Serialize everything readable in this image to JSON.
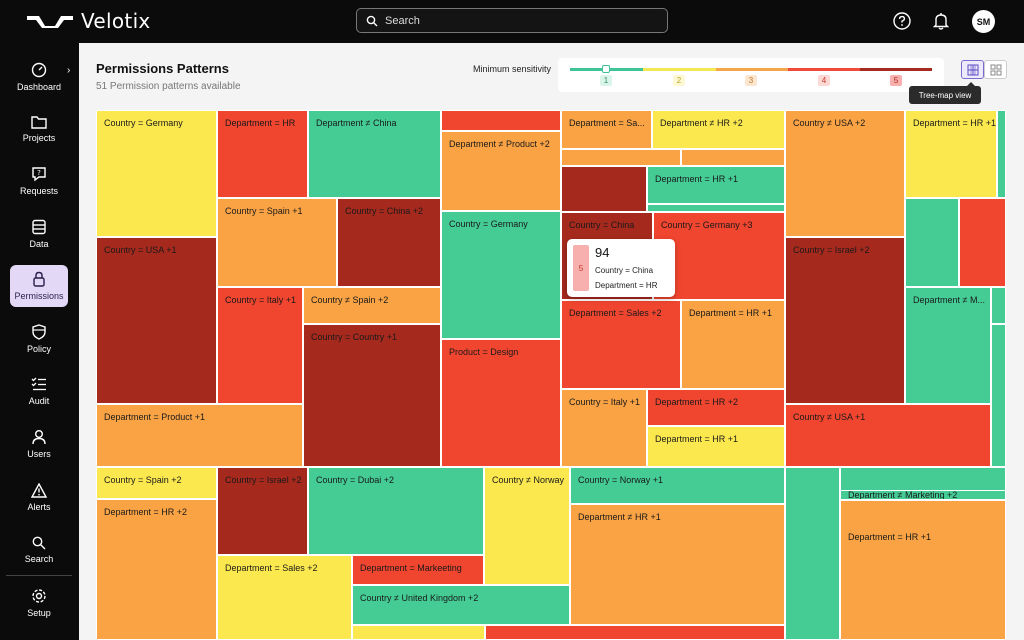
{
  "app": {
    "name": "Velotix"
  },
  "search": {
    "placeholder": "Search"
  },
  "user": {
    "initials": "SM"
  },
  "sidebar": {
    "items": [
      {
        "label": "Dashboard",
        "icon": "dashboard-icon"
      },
      {
        "label": "Projects",
        "icon": "folder-icon"
      },
      {
        "label": "Requests",
        "icon": "requests-icon"
      },
      {
        "label": "Data",
        "icon": "database-icon"
      },
      {
        "label": "Permissions",
        "icon": "lock-icon",
        "active": true
      },
      {
        "label": "Policy",
        "icon": "shield-icon"
      },
      {
        "label": "Audit",
        "icon": "checklist-icon"
      },
      {
        "label": "Users",
        "icon": "user-icon"
      },
      {
        "label": "Alerts",
        "icon": "warning-icon"
      },
      {
        "label": "Search",
        "icon": "search-icon"
      },
      {
        "label": "Setup",
        "icon": "gear-icon"
      }
    ]
  },
  "header": {
    "title": "Permissions Patterns",
    "subtitle": "51 Permission patterns available"
  },
  "sensitivity": {
    "label": "Minimum sensitivity",
    "levels": [
      "1",
      "2",
      "3",
      "4",
      "5"
    ],
    "selected": "1",
    "colors": [
      "#3ec495",
      "#f5e654",
      "#f5a54a",
      "#f04a3a",
      "#a52a1f"
    ]
  },
  "view_toggle": {
    "tooltip": "Tree-map view"
  },
  "colors": {
    "yellow": "#fbe84f",
    "green": "#44cc94",
    "lightorange": "#f9a344",
    "orange": "#f7903b",
    "red": "#f0452f",
    "darkred": "#a6291d"
  },
  "treemap": {
    "cells": [
      {
        "label": "Country = Germany"
      },
      {
        "label": "Department = HR"
      },
      {
        "label": "Department ≠ China"
      },
      {
        "label": "Department ≠ Product +2"
      },
      {
        "label": "Department = Sa..."
      },
      {
        "label": "Department ≠ HR +2"
      },
      {
        "label": "Country ≠ USA +2"
      },
      {
        "label": "Department = HR +1"
      },
      {
        "label": "Country = Spain +1"
      },
      {
        "label": "Country = China +2"
      },
      {
        "label": "Department = HR +1"
      },
      {
        "label": "Country = Germany"
      },
      {
        "label": "Country = China"
      },
      {
        "label": "Country = Germany +3"
      },
      {
        "label": "Country = USA +1"
      },
      {
        "label": "Country = Israel +2"
      },
      {
        "label": "Country = Italy +1"
      },
      {
        "label": "Country ≠ Spain +2"
      },
      {
        "label": "Department ≠ M..."
      },
      {
        "label": "Country = Country +1"
      },
      {
        "label": "Department = Sales +2"
      },
      {
        "label": "Department = HR +1"
      },
      {
        "label": "Product = Design"
      },
      {
        "label": "Department = Product +1"
      },
      {
        "label": "Country = Italy +1"
      },
      {
        "label": "Department = HR +2"
      },
      {
        "label": "Country ≠ USA +1"
      },
      {
        "label": "Department = HR +1"
      },
      {
        "label": "Country = Spain +2"
      },
      {
        "label": "Country = Israel +2"
      },
      {
        "label": "Country = Dubai +2"
      },
      {
        "label": "Country ≠ Norway"
      },
      {
        "label": "Country = Norway +1"
      },
      {
        "label": "Department ≠ Marketing +2"
      },
      {
        "label": "Department = HR +1"
      },
      {
        "label": "Department = HR +2"
      },
      {
        "label": "Department ≠ HR +1"
      },
      {
        "label": "Department = Sales +2"
      },
      {
        "label": "Department = Markeeting"
      },
      {
        "label": "Country ≠ United Kingdom +2"
      }
    ]
  },
  "hover_card": {
    "count": "94",
    "sensitivity": "5",
    "row1": "Country = China",
    "row2": "Department = HR"
  }
}
